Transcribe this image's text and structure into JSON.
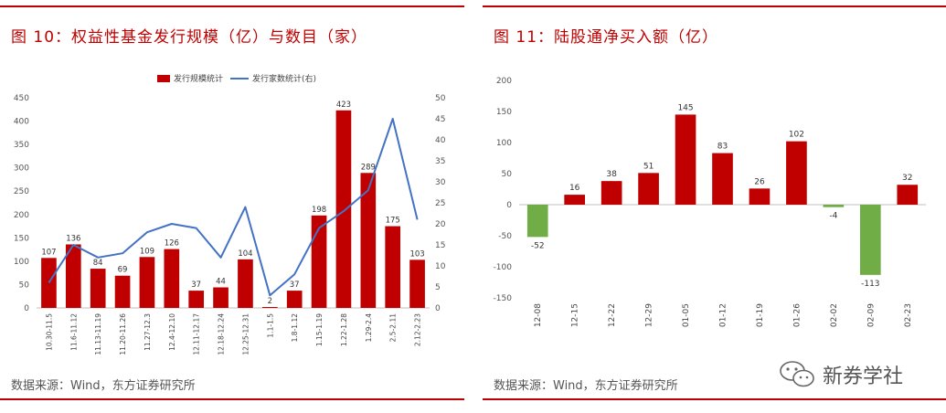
{
  "left": {
    "title": "图 10：权益性基金发行规模（亿）与数目（家）",
    "source": "数据来源：Wind，东方证券研究所"
  },
  "right": {
    "title": "图 11：陆股通净买入额（亿）",
    "source": "数据来源：Wind，东方证券研究所"
  },
  "watermark": {
    "text": "新券学社"
  },
  "colors": {
    "red": "#c00000",
    "blue": "#4472c4",
    "green": "#70ad47"
  },
  "chart_data": [
    {
      "type": "bar",
      "categories": [
        "10.30-11.5",
        "11.6-11.12",
        "11.13-11.19",
        "11.20-11.26",
        "11.27-12.3",
        "12.4-12.10",
        "12.11-12.17",
        "12.18-12.24",
        "12.25-12.31",
        "1.1-1.5",
        "1.8-1.12",
        "1.15-1.19",
        "1.22-1.28",
        "1.29-2.4",
        "2.5-2.11",
        "2.12-2.23"
      ],
      "series": [
        {
          "name": "发行规模统计",
          "type": "bar",
          "axis": "left",
          "values": [
            107,
            136,
            84,
            69,
            109,
            126,
            37,
            44,
            104,
            2,
            37,
            198,
            423,
            289,
            175,
            103
          ]
        },
        {
          "name": "发行家数统计(右)",
          "type": "line",
          "axis": "right",
          "values": [
            6,
            15,
            12,
            13,
            18,
            20,
            19,
            12,
            24,
            3,
            8,
            19,
            23,
            28,
            45,
            21
          ]
        }
      ],
      "yticks_left": [
        "0",
        "50",
        "100",
        "150",
        "200",
        "250",
        "300",
        "350",
        "400",
        "450"
      ],
      "yticks_right": [
        "0",
        "5",
        "10",
        "15",
        "20",
        "25",
        "30",
        "35",
        "40",
        "45",
        "50"
      ],
      "ylim_left": [
        0,
        450
      ],
      "ylim_right": [
        0,
        50
      ],
      "legend_position": "top-center",
      "grid": false
    },
    {
      "type": "bar",
      "categories": [
        "12-08",
        "12-15",
        "12-22",
        "12-29",
        "01-05",
        "01-12",
        "01-19",
        "01-26",
        "02-02",
        "02-09",
        "02-23"
      ],
      "values": [
        -52,
        16,
        38,
        51,
        145,
        83,
        26,
        102,
        -4,
        -113,
        32
      ],
      "yticks": [
        "-150",
        "-100",
        "-50",
        "0",
        "50",
        "100",
        "150",
        "200"
      ],
      "ylim": [
        -150,
        200
      ],
      "grid": false
    }
  ]
}
